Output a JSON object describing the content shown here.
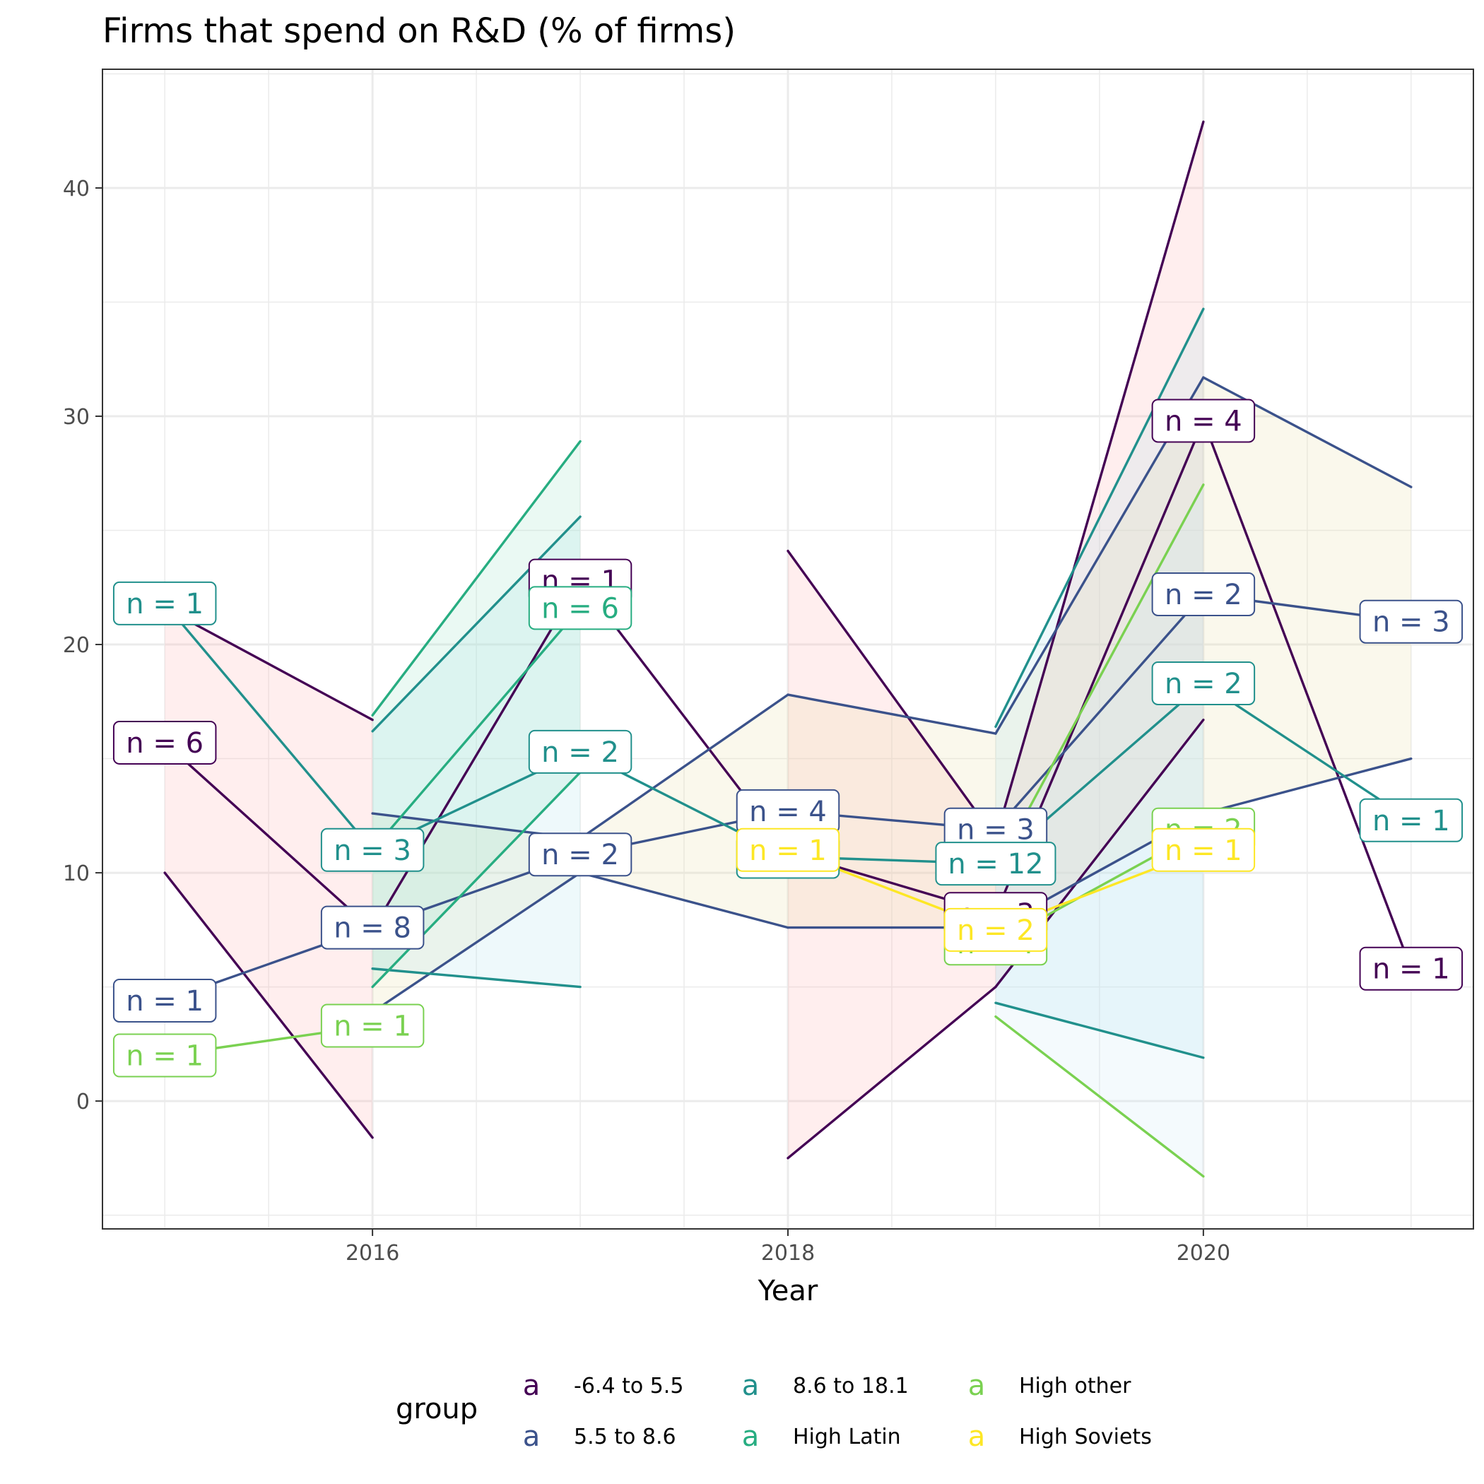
{
  "chart_data": {
    "type": "line",
    "title": "Firms that spend on R&D (% of firms)",
    "xlabel": "Year",
    "ylabel": "",
    "xlim": [
      2014.7,
      2021.3
    ],
    "ylim": [
      -5.6,
      45.2
    ],
    "x_ticks": [
      2016,
      2018,
      2020
    ],
    "y_ticks": [
      0,
      10,
      20,
      30,
      40
    ],
    "grid": true,
    "legend": {
      "title": "group",
      "position": "bottom",
      "key_glyph": "a",
      "entries": [
        "-6.4 to 5.5",
        "5.5 to 8.6",
        "8.6 to 18.1",
        "High Latin",
        "High other",
        "High Soviets"
      ]
    },
    "series": [
      {
        "name": "-6.4 to 5.5",
        "color": "#440154",
        "band_color": "#ffb3b3",
        "points": [
          {
            "x": 2015,
            "y": 15.7,
            "lo": 10.0,
            "hi": 21.6,
            "label": "n = 6"
          },
          {
            "x": 2016,
            "y": 7.5,
            "lo": -1.6,
            "hi": 16.7
          },
          {
            "x": 2017,
            "y": 22.8,
            "label": "n = 1"
          },
          {
            "x": 2018,
            "y": 10.9,
            "lo": -2.5,
            "hi": 24.1
          },
          {
            "x": 2019,
            "y": 8.2,
            "lo": 5.0,
            "hi": 11.5,
            "label": "n = 3"
          },
          {
            "x": 2020,
            "y": 29.8,
            "lo": 16.7,
            "hi": 42.9,
            "label": "n = 4"
          },
          {
            "x": 2021,
            "y": 5.8,
            "label": "n = 1"
          }
        ]
      },
      {
        "name": "5.5 to 8.6",
        "color": "#3b528b",
        "band_color": "#e6ddaa",
        "points": [
          {
            "x": 2015,
            "y": 4.4,
            "label": "n = 1"
          },
          {
            "x": 2016,
            "y": 7.6,
            "lo": 3.9,
            "hi": 12.6,
            "label": "n = 8"
          },
          {
            "x": 2017,
            "y": 10.8,
            "lo": 10.0,
            "hi": 11.5,
            "label": "n = 2"
          },
          {
            "x": 2018,
            "y": 12.7,
            "lo": 7.6,
            "hi": 17.8,
            "label": "n = 4"
          },
          {
            "x": 2019,
            "y": 11.9,
            "lo": 7.6,
            "hi": 16.1,
            "label": "n = 3"
          },
          {
            "x": 2020,
            "y": 22.2,
            "lo": 12.6,
            "hi": 31.7,
            "label": "n = 2"
          },
          {
            "x": 2021,
            "y": 21.0,
            "lo": 15.0,
            "hi": 26.9,
            "label": "n = 3"
          }
        ]
      },
      {
        "name": "8.6 to 18.1",
        "color": "#21908c",
        "band_color": "#b3e3ef",
        "points": [
          {
            "x": 2015,
            "y": 21.8,
            "label": "n = 1"
          },
          {
            "x": 2016,
            "y": 11.0,
            "lo": 5.8,
            "hi": 16.2,
            "label": "n = 3"
          },
          {
            "x": 2017,
            "y": 15.3,
            "lo": 5.0,
            "hi": 25.6,
            "label": "n = 2"
          },
          {
            "x": 2018,
            "y": 10.7,
            "label": "n = 1"
          },
          {
            "x": 2019,
            "y": 10.4,
            "lo": 4.3,
            "hi": 16.4,
            "label": "n = 12"
          },
          {
            "x": 2020,
            "y": 18.3,
            "lo": 1.9,
            "hi": 34.7,
            "label": "n = 2"
          },
          {
            "x": 2021,
            "y": 12.3,
            "label": "n = 1"
          }
        ]
      },
      {
        "name": "High Latin",
        "color": "#27ad81",
        "band_color": "#9fe2c8",
        "points": [
          {
            "x": 2016,
            "y": 11.0,
            "lo": 5.0,
            "hi": 16.9
          },
          {
            "x": 2017,
            "y": 21.6,
            "lo": 14.4,
            "hi": 28.9,
            "label": "n = 6"
          }
        ]
      },
      {
        "name": "High other",
        "color": "#7ad151",
        "band_color": "#cde9f8",
        "points": [
          {
            "x": 2015,
            "y": 2.0,
            "label": "n = 1"
          },
          {
            "x": 2016,
            "y": 3.3,
            "label": "n = 1"
          },
          {
            "x": 2019,
            "y": 6.9,
            "lo": 3.7,
            "hi": 10.1,
            "label": "n = 4"
          },
          {
            "x": 2020,
            "y": 11.9,
            "lo": -3.3,
            "hi": 27.0,
            "label": "n = 2"
          }
        ]
      },
      {
        "name": "High Soviets",
        "color": "#fde725",
        "band_color": "#fde725",
        "points": [
          {
            "x": 2018,
            "y": 11.0,
            "label": "n = 1"
          },
          {
            "x": 2019,
            "y": 7.5,
            "label": "n = 2"
          },
          {
            "x": 2020,
            "y": 11.0,
            "label": "n = 1"
          }
        ]
      }
    ]
  }
}
